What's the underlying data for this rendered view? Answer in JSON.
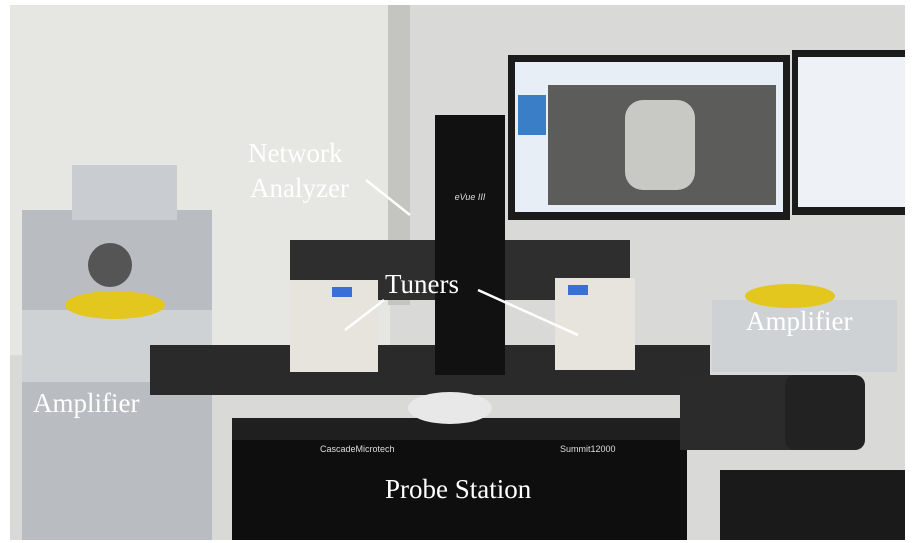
{
  "labels": {
    "network_analyzer": [
      "Network",
      "Analyzer"
    ],
    "tuners": "Tuners",
    "amplifier_left": "Amplifier",
    "amplifier_right": "Amplifier",
    "probe_station": "Probe Station"
  },
  "device_text": {
    "scope": "eVue III",
    "brand": "CascadeMicrotech",
    "model": "Summit12000"
  }
}
